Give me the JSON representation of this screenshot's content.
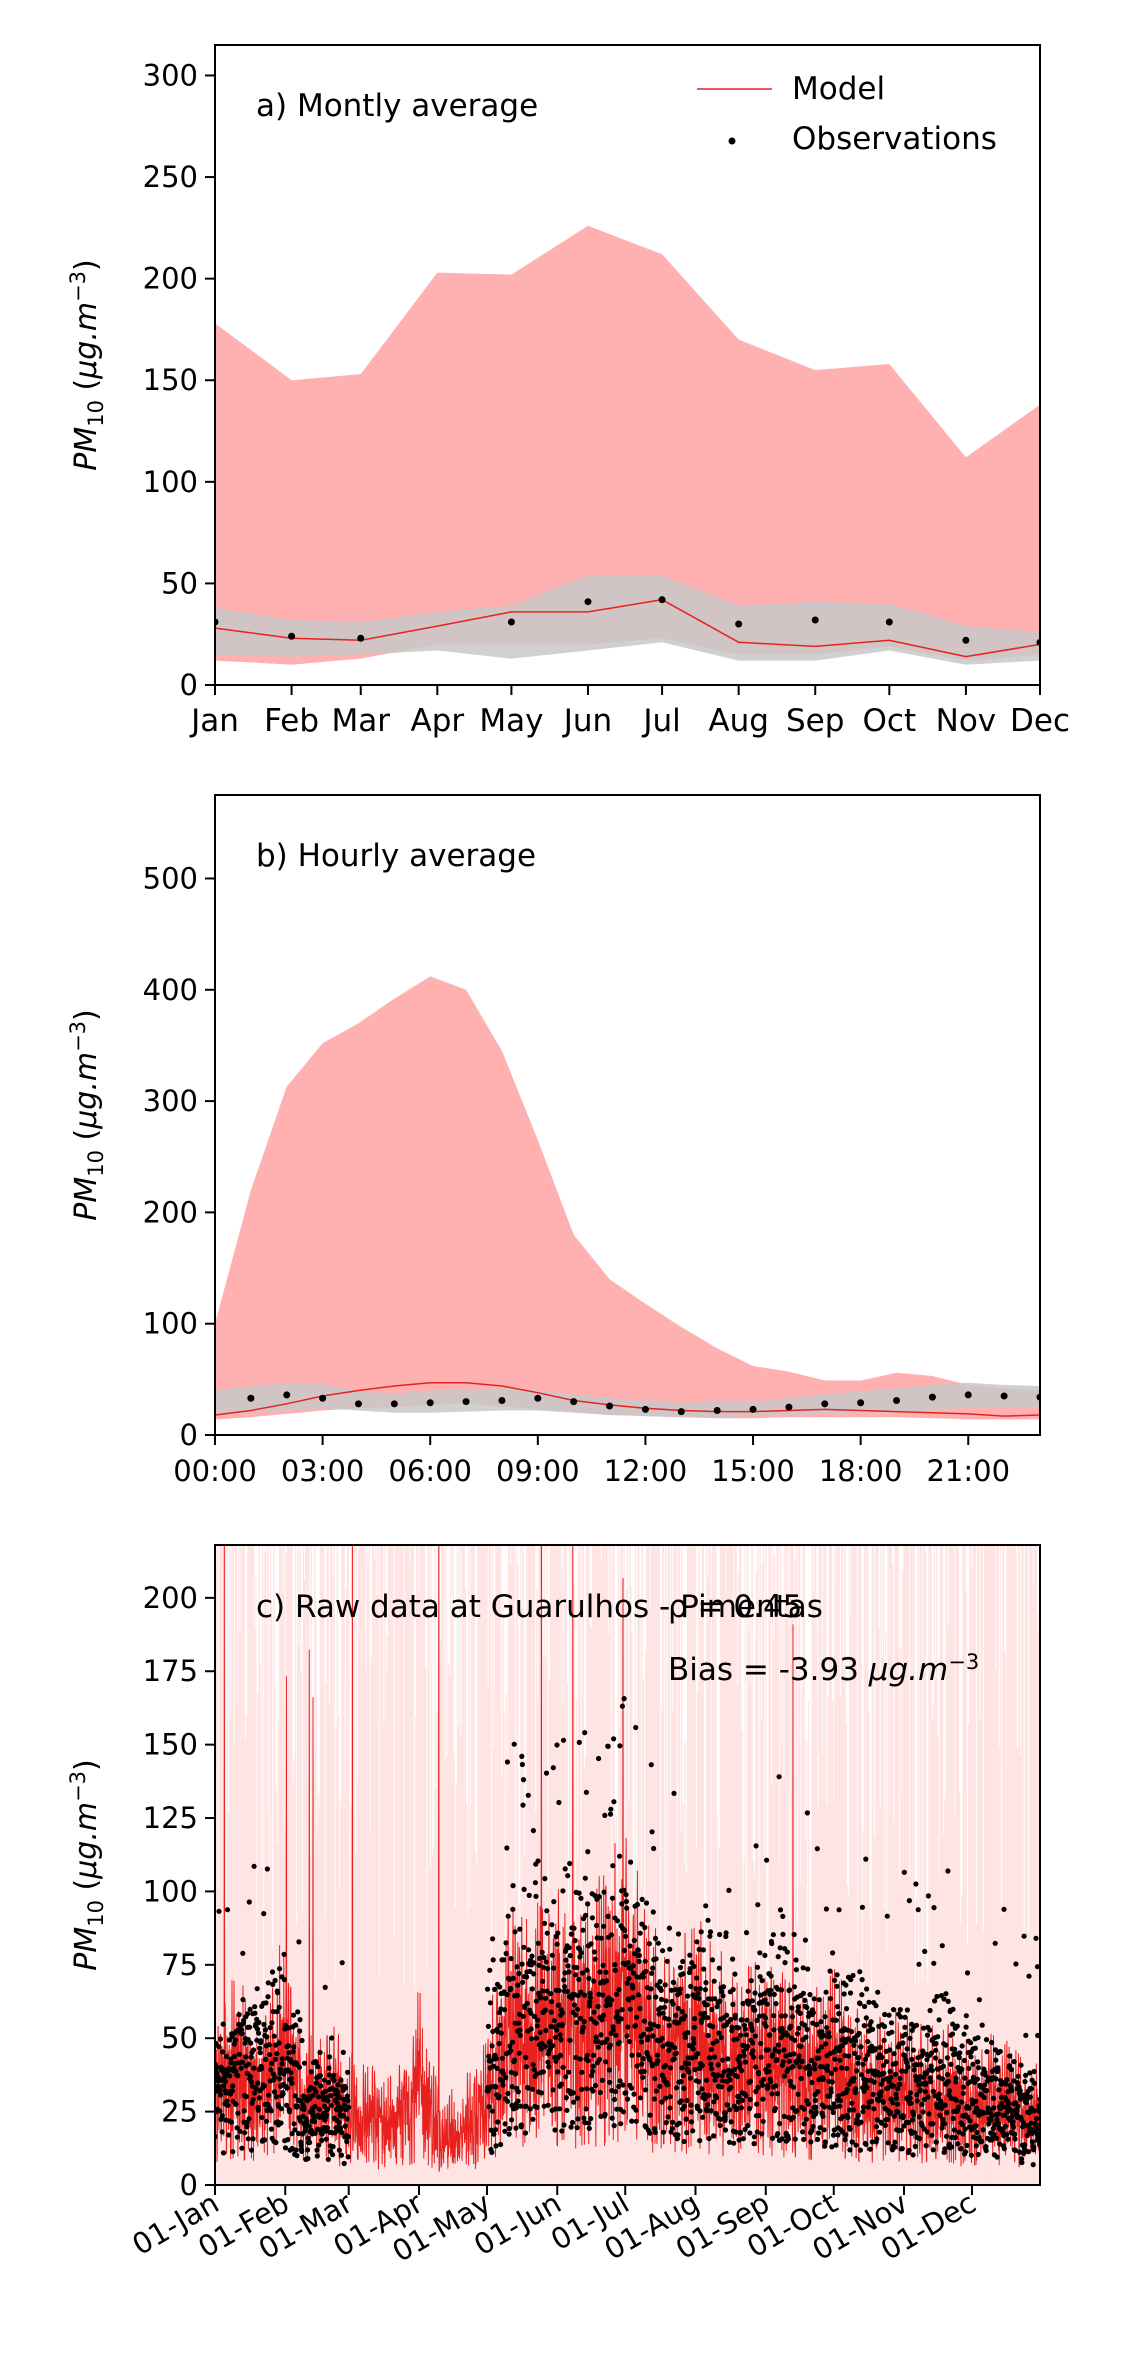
{
  "colors": {
    "model_line": "#e8211f",
    "model_range": "#ffb1b1",
    "obs_range": "#c8c8c8",
    "observations": "#000000",
    "raw_range_light": "#ffdede"
  },
  "chart_data": [
    {
      "id": "a",
      "type": "line",
      "title": "a) Montly average",
      "ylabel": "PM_10 (μg.m^-3)",
      "ylim": [
        0,
        315
      ],
      "yticks": [
        0,
        50,
        100,
        150,
        200,
        250,
        300
      ],
      "x_positions": [
        0,
        31,
        59,
        90,
        120,
        151,
        181,
        212,
        243,
        273,
        304,
        334
      ],
      "categories": [
        "Jan",
        "Feb",
        "Mar",
        "Apr",
        "May",
        "Jun",
        "Jul",
        "Aug",
        "Sep",
        "Oct",
        "Nov",
        "Dec"
      ],
      "xlim": [
        0,
        334
      ],
      "legend": {
        "placement": "top-right",
        "entries": [
          "Model",
          "Observations"
        ]
      },
      "series": [
        {
          "name": "Model",
          "kind": "line",
          "values": [
            28,
            23,
            22,
            29,
            36,
            36,
            42,
            21,
            19,
            22,
            14,
            20
          ]
        },
        {
          "name": "Observations",
          "kind": "points",
          "values": [
            31,
            24,
            23,
            null,
            31,
            41,
            42,
            30,
            32,
            31,
            22,
            21
          ]
        },
        {
          "name": "model_range",
          "kind": "band",
          "lower": [
            12,
            10,
            13,
            20,
            20,
            20,
            23,
            15,
            15,
            19,
            12,
            15
          ],
          "upper": [
            178,
            150,
            153,
            203,
            202,
            226,
            212,
            170,
            155,
            158,
            112,
            138
          ]
        },
        {
          "name": "obs_range",
          "kind": "band",
          "lower": [
            15,
            14,
            15,
            17,
            13,
            17,
            21,
            12,
            12,
            17,
            10,
            12
          ],
          "upper": [
            38,
            32,
            31,
            36,
            39,
            54,
            54,
            39,
            41,
            40,
            29,
            26
          ]
        }
      ]
    },
    {
      "id": "b",
      "type": "line",
      "title": "b) Hourly average",
      "ylabel": "PM_10 (μg.m^-3)",
      "ylim": [
        0,
        575
      ],
      "yticks": [
        0,
        100,
        200,
        300,
        400,
        500
      ],
      "xlim": [
        0,
        23
      ],
      "xticks": [
        0,
        3,
        6,
        9,
        12,
        15,
        18,
        21
      ],
      "xticklabels": [
        "00:00",
        "03:00",
        "06:00",
        "09:00",
        "12:00",
        "15:00",
        "18:00",
        "21:00"
      ],
      "series": [
        {
          "name": "Model",
          "kind": "line",
          "values": [
            18,
            22,
            28,
            35,
            40,
            44,
            47,
            47,
            44,
            38,
            31,
            27,
            24,
            22,
            21,
            21,
            22,
            23,
            22,
            21,
            20,
            19,
            17,
            18
          ]
        },
        {
          "name": "Observations",
          "kind": "points",
          "values": [
            null,
            33,
            36,
            33,
            28,
            28,
            29,
            30,
            31,
            33,
            30,
            26,
            23,
            21,
            22,
            23,
            25,
            28,
            29,
            31,
            34,
            36,
            35,
            34
          ]
        },
        {
          "name": "model_range",
          "kind": "band",
          "lower": [
            14,
            16,
            19,
            22,
            24,
            25,
            27,
            28,
            26,
            23,
            21,
            18,
            17,
            16,
            15,
            15,
            16,
            16,
            16,
            16,
            15,
            14,
            14,
            14
          ],
          "upper": [
            100,
            220,
            313,
            352,
            370,
            392,
            412,
            400,
            345,
            265,
            180,
            140,
            118,
            97,
            78,
            62,
            57,
            49,
            49,
            56,
            53,
            45,
            42,
            40
          ]
        },
        {
          "name": "obs_range",
          "kind": "band",
          "lower": [
            20,
            20,
            22,
            24,
            22,
            20,
            20,
            21,
            22,
            22,
            20,
            18,
            17,
            16,
            16,
            17,
            18,
            19,
            20,
            20,
            22,
            25,
            25,
            25
          ],
          "upper": [
            40,
            44,
            47,
            46,
            39,
            37,
            40,
            41,
            42,
            40,
            36,
            33,
            31,
            29,
            30,
            30,
            33,
            37,
            39,
            42,
            45,
            47,
            45,
            44
          ]
        }
      ]
    },
    {
      "id": "c",
      "type": "line",
      "title": "c) Raw data at Guarulhos - Pimentas",
      "stats": [
        "ρ = 0.45",
        "Bias = -3.93 μg.m^-3"
      ],
      "ylabel": "PM_10 (μg.m^-3)",
      "ylim": [
        0,
        218
      ],
      "yticks": [
        0,
        25,
        50,
        75,
        100,
        125,
        150,
        175,
        200
      ],
      "xlim": [
        0,
        364
      ],
      "xticks": [
        0,
        31,
        59,
        90,
        120,
        151,
        181,
        212,
        243,
        273,
        304,
        334
      ],
      "xticklabels": [
        "01-Jan",
        "01-Feb",
        "01-Mar",
        "01-Apr",
        "01-May",
        "01-Jun",
        "01-Jul",
        "01-Aug",
        "01-Sep",
        "01-Oct",
        "01-Nov",
        "01-Dec"
      ],
      "series": [
        {
          "name": "Model",
          "kind": "hourly_line",
          "x": [
            0,
            10,
            20,
            31,
            40,
            50,
            59,
            70,
            80,
            90,
            100,
            110,
            120,
            130,
            140,
            151,
            160,
            170,
            181,
            190,
            200,
            212,
            220,
            230,
            243,
            250,
            260,
            273,
            280,
            290,
            304,
            310,
            320,
            334,
            345,
            364
          ],
          "values": [
            30,
            35,
            28,
            42,
            25,
            28,
            22,
            20,
            18,
            32,
            14,
            18,
            25,
            48,
            45,
            52,
            48,
            50,
            62,
            45,
            38,
            44,
            40,
            35,
            40,
            38,
            32,
            36,
            32,
            28,
            30,
            26,
            28,
            24,
            25,
            20
          ]
        },
        {
          "name": "Observations",
          "kind": "hourly_points",
          "x": [
            0,
            10,
            20,
            31,
            40,
            50,
            59,
            70,
            80,
            90,
            100,
            110,
            120,
            130,
            140,
            151,
            160,
            170,
            181,
            190,
            200,
            212,
            220,
            230,
            243,
            250,
            260,
            273,
            280,
            290,
            304,
            310,
            320,
            334,
            345,
            364
          ],
          "values": [
            30,
            38,
            40,
            42,
            25,
            28,
            20,
            null,
            null,
            null,
            null,
            null,
            30,
            55,
            58,
            60,
            62,
            58,
            65,
            55,
            50,
            48,
            52,
            45,
            48,
            50,
            45,
            42,
            38,
            40,
            35,
            32,
            38,
            30,
            28,
            22
          ]
        }
      ]
    }
  ]
}
